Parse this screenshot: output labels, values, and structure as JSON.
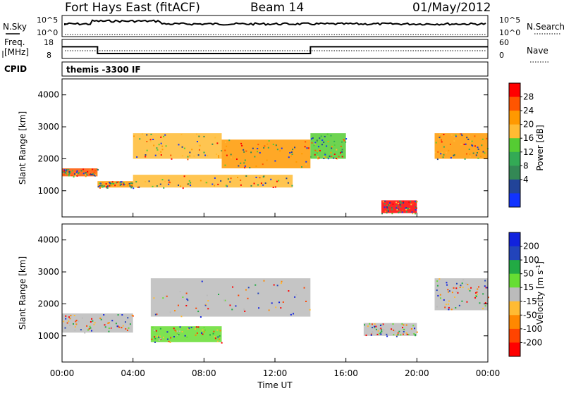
{
  "header": {
    "station": "Fort Hays East (fitACF)",
    "beam": "Beam 14",
    "date": "01/May/2012"
  },
  "top_panel": {
    "left_label": "N.Sky",
    "right_label": "N.Search",
    "left_ticks": [
      "10^5",
      "10^0"
    ],
    "right_ticks": [
      "10^5",
      "10^0"
    ]
  },
  "freq_panel": {
    "left_label_line1": "Freq.",
    "left_label_line2": "[MHz]",
    "right_label": "Nave",
    "left_ticks": [
      "18",
      "8"
    ],
    "right_ticks": [
      "60",
      "0"
    ]
  },
  "cpid": {
    "label": "CPID",
    "value": "themis -3300 IF"
  },
  "power_panel": {
    "ylabel": "Slant Range [km]",
    "yticks": [
      "4000",
      "3000",
      "2000",
      "1000"
    ],
    "colorbar_label": "Power [dB]",
    "colorbar_ticks": [
      "28",
      "24",
      "20",
      "16",
      "12",
      "8",
      "4"
    ],
    "colorbar_colors": [
      "#ff0000",
      "#ff5500",
      "#ff9900",
      "#ffbb33",
      "#55cc33",
      "#33aa55",
      "#338855",
      "#224499",
      "#1133ff"
    ]
  },
  "velocity_panel": {
    "ylabel": "Slant Range [km]",
    "yticks": [
      "4000",
      "3000",
      "2000",
      "1000"
    ],
    "colorbar_label": "Velocity [m s",
    "colorbar_label_sup": "-1",
    "colorbar_label_end": "]",
    "colorbar_ticks": [
      "200",
      "100",
      "50",
      "15",
      "-15",
      "-50",
      "-100",
      "-200"
    ],
    "colorbar_colors": [
      "#1122dd",
      "#2244bb",
      "#22aa44",
      "#66dd33",
      "#bbbbbb",
      "#ffbb33",
      "#ff8800",
      "#ff4400",
      "#ff0000"
    ]
  },
  "x_axis": {
    "label": "Time UT",
    "ticks": [
      "00:00",
      "04:00",
      "08:00",
      "12:00",
      "16:00",
      "20:00",
      "00:00"
    ]
  },
  "chart_data": {
    "type": "heatmap",
    "title": "Fort Hays East (fitACF)",
    "subtitle": "Beam 14",
    "xlabel": "Time UT",
    "ylabel": "Slant Range [km]",
    "xlim": [
      0,
      24
    ],
    "ylim": [
      180,
      4500
    ],
    "frequency_mhz": [
      {
        "start_h": 0,
        "end_h": 2,
        "value": 14.5
      },
      {
        "start_h": 2,
        "end_h": 14,
        "value": 10.5
      },
      {
        "start_h": 14,
        "end_h": 24,
        "value": 14.5
      }
    ],
    "power_features": [
      {
        "t0": 0,
        "t1": 2,
        "r0": 1450,
        "r1": 1700,
        "db": 24
      },
      {
        "t0": 2,
        "t1": 4,
        "r0": 1100,
        "r1": 1300,
        "db": 20
      },
      {
        "t0": 4,
        "t1": 13,
        "r0": 1100,
        "r1": 1500,
        "db": 18
      },
      {
        "t0": 4,
        "t1": 9,
        "r0": 2000,
        "r1": 2800,
        "db": 16
      },
      {
        "t0": 9,
        "t1": 14,
        "r0": 1700,
        "r1": 2600,
        "db": 20
      },
      {
        "t0": 14,
        "t1": 16,
        "r0": 2000,
        "r1": 2800,
        "db": 12
      },
      {
        "t0": 18,
        "t1": 20,
        "r0": 300,
        "r1": 700,
        "db": 28
      },
      {
        "t0": 21,
        "t1": 24,
        "r0": 2000,
        "r1": 2800,
        "db": 22
      }
    ],
    "velocity_features": [
      {
        "t0": 0,
        "t1": 4,
        "r0": 1100,
        "r1": 1700,
        "v": 0
      },
      {
        "t0": 5,
        "t1": 9,
        "r0": 800,
        "r1": 1300,
        "v": 30
      },
      {
        "t0": 5,
        "t1": 14,
        "r0": 1600,
        "r1": 2800,
        "v": 0
      },
      {
        "t0": 17,
        "t1": 20,
        "r0": 1000,
        "r1": 1400,
        "v": 0
      },
      {
        "t0": 21,
        "t1": 24,
        "r0": 1800,
        "r1": 2800,
        "v": 0
      }
    ]
  }
}
